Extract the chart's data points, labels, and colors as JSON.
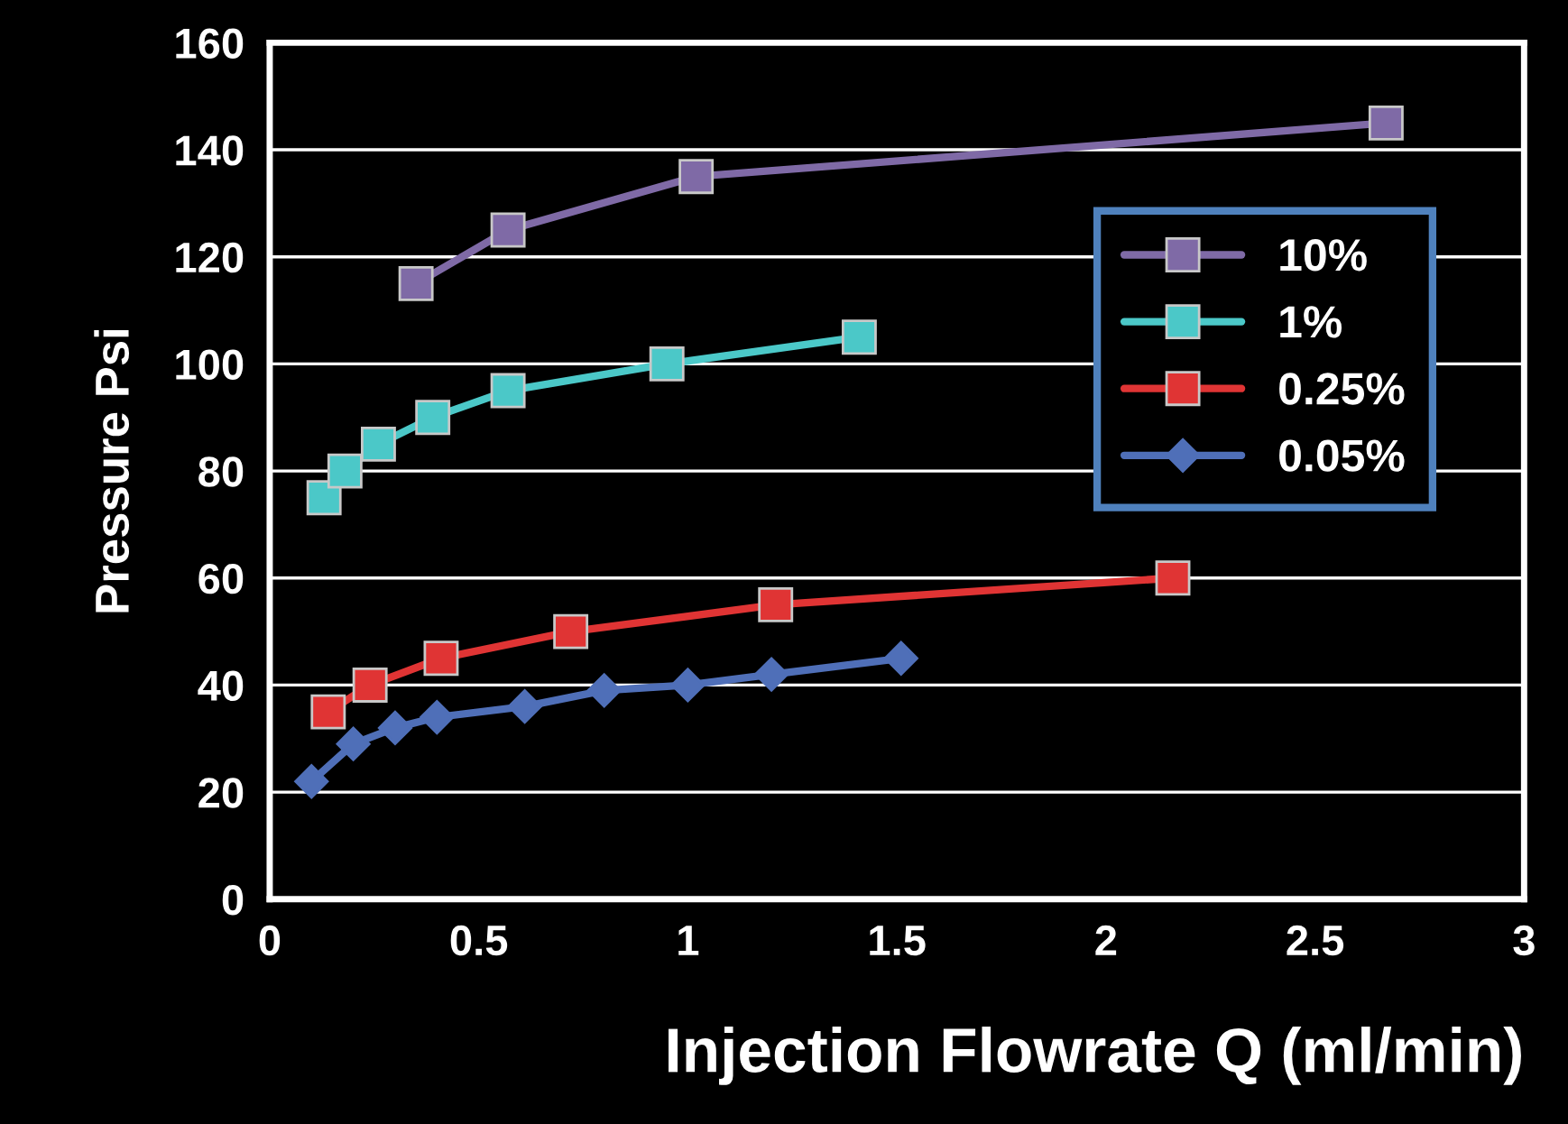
{
  "chart_data": {
    "type": "line",
    "xlabel": "Injection Flowrate Q (ml/min)",
    "ylabel": "Pressure Psi",
    "xlim": [
      0,
      3
    ],
    "xticks": [
      0,
      0.5,
      1,
      1.5,
      2,
      2.5,
      3
    ],
    "ylim": [
      0,
      160
    ],
    "yticks": [
      0,
      20,
      40,
      60,
      80,
      100,
      120,
      140,
      160
    ],
    "grid": "y",
    "legend": "top right",
    "line_style": "solid",
    "series": [
      {
        "name": "10%",
        "color": "#7f6aa6",
        "marker": "square",
        "x": [
          0.35,
          0.57,
          1.02,
          2.67
        ],
        "values": [
          115,
          125,
          135,
          145
        ]
      },
      {
        "name": "1%",
        "color": "#4bc8c8",
        "marker": "square",
        "x": [
          0.13,
          0.18,
          0.26,
          0.39,
          0.57,
          0.95,
          1.41
        ],
        "values": [
          75,
          80,
          85,
          90,
          95,
          100,
          105
        ]
      },
      {
        "name": "0.25%",
        "color": "#e03434",
        "marker": "square",
        "x": [
          0.14,
          0.24,
          0.41,
          0.72,
          1.21,
          2.16
        ],
        "values": [
          35,
          40,
          45,
          50,
          55,
          60
        ]
      },
      {
        "name": "0.05%",
        "color": "#4f6fb8",
        "marker": "diamond",
        "x": [
          0.1,
          0.2,
          0.3,
          0.4,
          0.61,
          0.8,
          1.0,
          1.2,
          1.51
        ],
        "values": [
          22,
          29,
          32,
          34,
          36,
          39,
          40,
          42,
          45
        ]
      }
    ]
  }
}
